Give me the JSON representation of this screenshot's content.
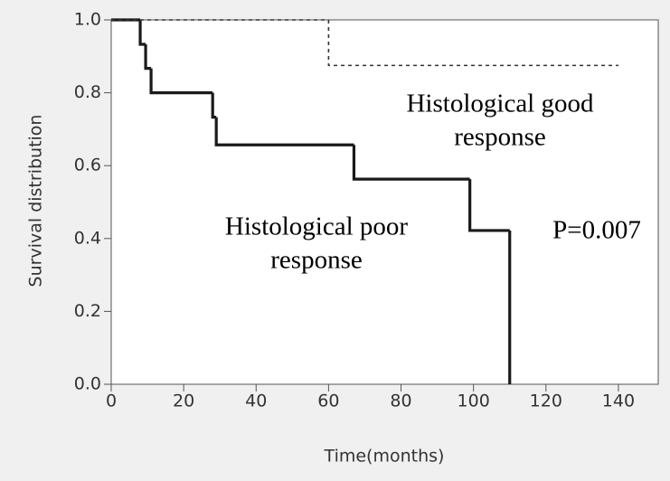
{
  "chart_data": {
    "type": "step",
    "xlabel": "Time(months)",
    "ylabel": "Survival distribution",
    "xlim": [
      0,
      151
    ],
    "ylim": [
      0,
      1
    ],
    "xticks": [
      0,
      20,
      40,
      60,
      80,
      100,
      120,
      140
    ],
    "yticks": [
      {
        "value": 0,
        "label": "0.0"
      },
      0.2,
      0.4,
      0.6,
      0.8,
      {
        "value": 1,
        "label": "1.0"
      }
    ],
    "series": [
      {
        "color": "#1a1a1a",
        "dash": false,
        "x": [
          0,
          8,
          9.5,
          11,
          28,
          29,
          67,
          99,
          110
        ],
        "values": [
          1,
          0.933,
          0.867,
          0.8,
          0.733,
          0.657,
          0.563,
          0.422,
          0
        ]
      },
      {
        "color": "#333333",
        "dash": true,
        "x": [
          0,
          60,
          140
        ],
        "values": [
          1,
          0.875,
          0.875
        ]
      }
    ],
    "annotations": [
      [
        "Histological good",
        "response"
      ],
      [
        "Histological poor",
        "response"
      ],
      [
        "P=0.007"
      ]
    ]
  }
}
